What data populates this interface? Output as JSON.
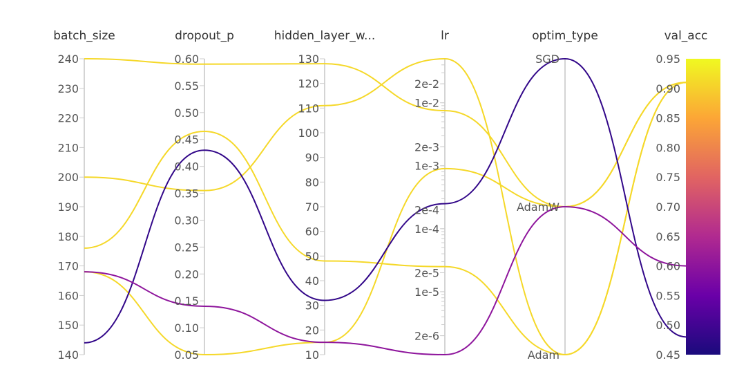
{
  "chart_data": {
    "type": "parallel_coordinates",
    "axes": [
      {
        "key": "batch_size",
        "label": "batch_size",
        "scale": "linear",
        "range": [
          140,
          240
        ],
        "ticks": [
          "240",
          "230",
          "220",
          "210",
          "200",
          "190",
          "180",
          "170",
          "160",
          "150",
          "140"
        ]
      },
      {
        "key": "dropout_p",
        "label": "dropout_p",
        "scale": "linear",
        "range": [
          0.05,
          0.6
        ],
        "ticks": [
          "0.60",
          "0.55",
          "0.50",
          "0.45",
          "0.40",
          "0.35",
          "0.30",
          "0.25",
          "0.20",
          "0.15",
          "0.10",
          "0.05"
        ]
      },
      {
        "key": "hidden_layer_width",
        "label": "hidden_layer_w...",
        "scale": "linear",
        "range": [
          10,
          130
        ],
        "ticks": [
          "130",
          "120",
          "110",
          "100",
          "90",
          "80",
          "70",
          "60",
          "50",
          "40",
          "30",
          "20",
          "10"
        ]
      },
      {
        "key": "lr",
        "label": "lr",
        "scale": "log",
        "range": [
          1e-06,
          0.05
        ],
        "ticks": [
          "2e-2",
          "1e-2",
          "2e-3",
          "1e-3",
          "2e-4",
          "1e-4",
          "2e-5",
          "1e-5",
          "2e-6"
        ]
      },
      {
        "key": "optim_type",
        "label": "optim_type",
        "scale": "categorical",
        "categories": [
          "Adam",
          "AdamW",
          "SGD"
        ],
        "ticks": [
          "SGD",
          "AdamW",
          "Adam"
        ]
      },
      {
        "key": "val_acc",
        "label": "val_acc",
        "scale": "linear",
        "range": [
          0.45,
          0.95
        ],
        "ticks": [
          "0.95",
          "0.90",
          "0.85",
          "0.80",
          "0.75",
          "0.70",
          "0.65",
          "0.60",
          "0.55",
          "0.50",
          "0.45"
        ]
      }
    ],
    "colorbar": {
      "metric": "val_acc",
      "range": [
        0.45,
        0.95
      ],
      "colors": [
        "#1a0a7c",
        "#6a00a8",
        "#b12a90",
        "#e16462",
        "#fca636",
        "#f0f921"
      ]
    },
    "runs": [
      {
        "batch_size": 240,
        "dropout_p": 0.59,
        "hidden_layer_width": 128,
        "lr": 0.0075,
        "optim_type": "AdamW",
        "val_acc": 0.91
      },
      {
        "batch_size": 200,
        "dropout_p": 0.355,
        "hidden_layer_width": 111,
        "lr": 0.05,
        "optim_type": "Adam",
        "val_acc": 0.91
      },
      {
        "batch_size": 176,
        "dropout_p": 0.465,
        "hidden_layer_width": 48,
        "lr": 2.5e-05,
        "optim_type": "Adam",
        "val_acc": 0.91
      },
      {
        "batch_size": 168,
        "dropout_p": 0.05,
        "hidden_layer_width": 15,
        "lr": 0.0009,
        "optim_type": "AdamW",
        "val_acc": 0.91
      },
      {
        "batch_size": 144,
        "dropout_p": 0.43,
        "hidden_layer_width": 32,
        "lr": 0.00025,
        "optim_type": "SGD",
        "val_acc": 0.48
      },
      {
        "batch_size": 168,
        "dropout_p": 0.14,
        "hidden_layer_width": 15,
        "lr": 1e-06,
        "optim_type": "AdamW",
        "val_acc": 0.6
      }
    ]
  }
}
